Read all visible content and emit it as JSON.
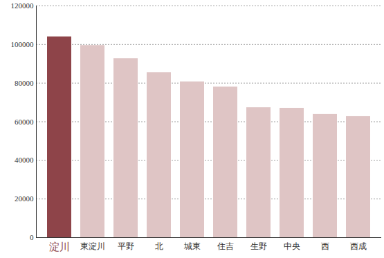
{
  "chart_data": {
    "type": "bar",
    "categories": [
      "淀川",
      "東淀川",
      "平野",
      "北",
      "城東",
      "住吉",
      "生野",
      "中央",
      "西",
      "西成"
    ],
    "values": [
      104000,
      99500,
      92700,
      85500,
      80700,
      78000,
      67300,
      67000,
      63800,
      62700
    ],
    "colors": [
      "#8e4449",
      "#dfc5c5",
      "#dfc5c5",
      "#dfc5c5",
      "#dfc5c5",
      "#dfc5c5",
      "#dfc5c5",
      "#dfc5c5",
      "#dfc5c5",
      "#dfc5c5"
    ],
    "ylim": [
      0,
      120000
    ],
    "yticks": [
      0,
      20000,
      40000,
      60000,
      80000,
      100000,
      120000
    ],
    "grid": true
  }
}
